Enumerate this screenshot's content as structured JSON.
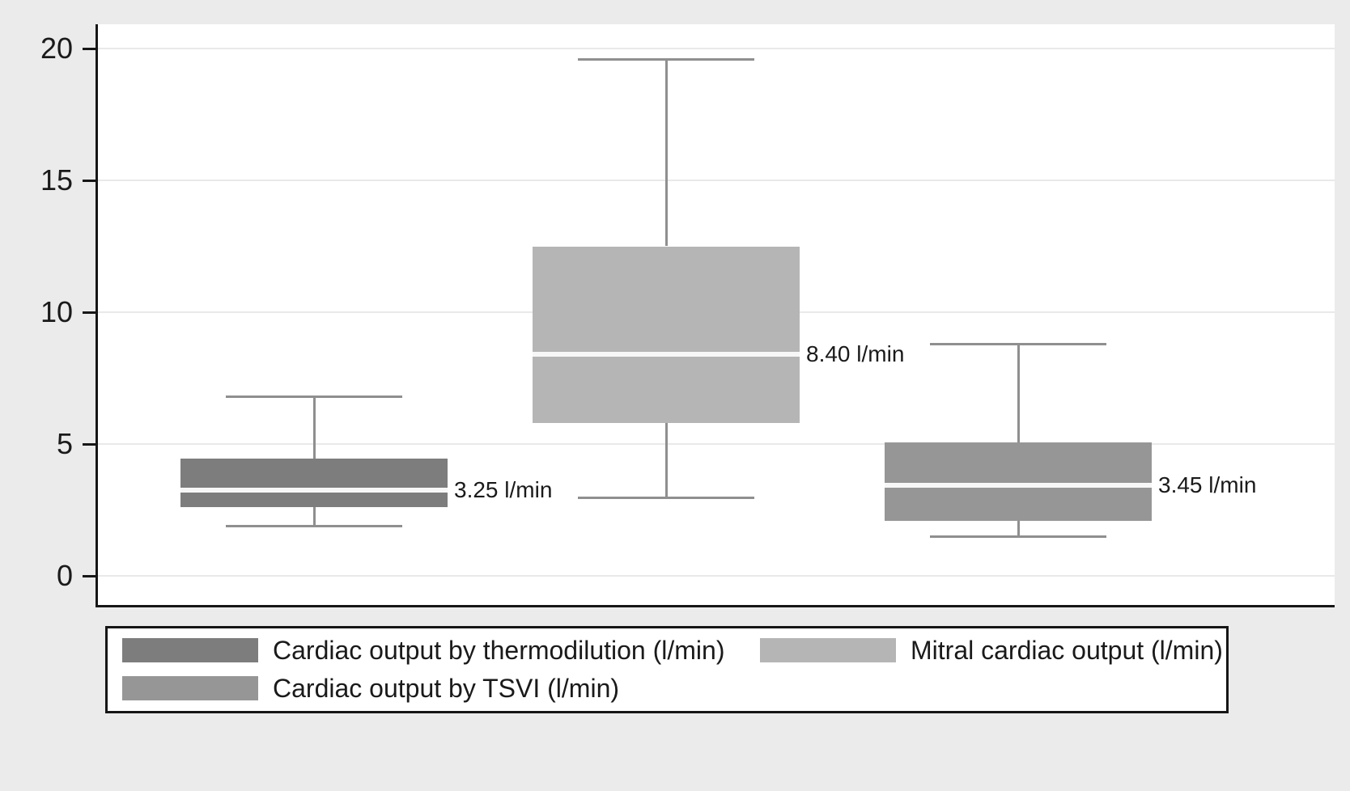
{
  "chart_data": {
    "type": "box",
    "title": "",
    "xlabel": "",
    "ylabel": "",
    "ylim": [
      0,
      20
    ],
    "yticks": [
      0,
      5,
      10,
      15,
      20
    ],
    "grid": true,
    "legend_position": "bottom",
    "series": [
      {
        "name": "Cardiac output by thermodilution (l/min)",
        "color": "#7d7d7d",
        "whisker_low": 1.9,
        "q1": 2.6,
        "median": 3.25,
        "q3": 4.45,
        "whisker_high": 6.8,
        "median_label": "3.25 l/min"
      },
      {
        "name": "Mitral cardiac output (l/min)",
        "color": "#b5b5b5",
        "whisker_low": 2.95,
        "q1": 5.8,
        "median": 8.4,
        "q3": 12.5,
        "whisker_high": 19.6,
        "median_label": "8.40 l/min"
      },
      {
        "name": "Cardiac output by TSVI (l/min)",
        "color": "#969696",
        "whisker_low": 1.5,
        "q1": 2.1,
        "median": 3.45,
        "q3": 5.05,
        "whisker_high": 8.8,
        "median_label": "3.45 l/min"
      }
    ],
    "legend": [
      {
        "label": "Cardiac output by thermodilution (l/min)",
        "color": "#7d7d7d"
      },
      {
        "label": "Mitral cardiac output (l/min)",
        "color": "#b5b5b5"
      },
      {
        "label": "Cardiac output by TSVI (l/min)",
        "color": "#969696"
      }
    ]
  },
  "colors": {
    "page_background": "#ebebeb",
    "plot_background": "#ffffff",
    "gridline": "#e9e9e9",
    "axis": "#161616",
    "whisker": "#8f8f8f",
    "median_line": "#f7f7f7",
    "text": "#1a1a1a",
    "legend_background": "#ffffff",
    "legend_border": "#161616"
  }
}
